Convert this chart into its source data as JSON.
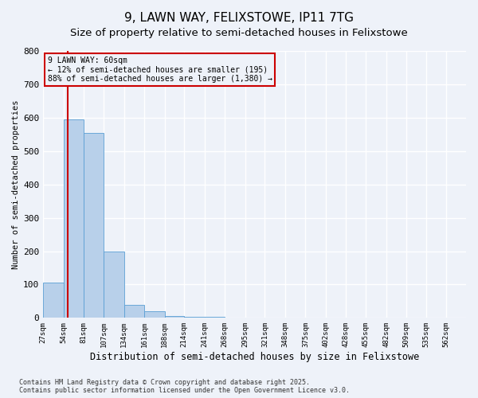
{
  "title": "9, LAWN WAY, FELIXSTOWE, IP11 7TG",
  "subtitle": "Size of property relative to semi-detached houses in Felixstowe",
  "xlabel": "Distribution of semi-detached houses by size in Felixstowe",
  "ylabel": "Number of semi-detached properties",
  "bin_labels": [
    "27sqm",
    "54sqm",
    "81sqm",
    "107sqm",
    "134sqm",
    "161sqm",
    "188sqm",
    "214sqm",
    "241sqm",
    "268sqm",
    "295sqm",
    "321sqm",
    "348sqm",
    "375sqm",
    "402sqm",
    "428sqm",
    "455sqm",
    "482sqm",
    "509sqm",
    "535sqm",
    "562sqm"
  ],
  "bin_edges": [
    27,
    54,
    81,
    107,
    134,
    161,
    188,
    214,
    241,
    268,
    295,
    321,
    348,
    375,
    402,
    428,
    455,
    482,
    509,
    535,
    562
  ],
  "bar_values": [
    105,
    595,
    555,
    200,
    40,
    20,
    5,
    3,
    2,
    1,
    1,
    0,
    0,
    0,
    0,
    0,
    0,
    0,
    0,
    0
  ],
  "bar_color": "#b8d0ea",
  "bar_edge_color": "#5a9fd4",
  "property_line_x": 60,
  "property_line_color": "#cc0000",
  "ylim": [
    0,
    800
  ],
  "annotation_line1": "9 LAWN WAY: 60sqm",
  "annotation_line2": "← 12% of semi-detached houses are smaller (195)",
  "annotation_line3": "88% of semi-detached houses are larger (1,380) →",
  "annotation_box_color": "#cc0000",
  "footnote1": "Contains HM Land Registry data © Crown copyright and database right 2025.",
  "footnote2": "Contains public sector information licensed under the Open Government Licence v3.0.",
  "background_color": "#eef2f9",
  "grid_color": "#ffffff",
  "title_fontsize": 11,
  "subtitle_fontsize": 9.5,
  "yticks": [
    0,
    100,
    200,
    300,
    400,
    500,
    600,
    700,
    800
  ]
}
